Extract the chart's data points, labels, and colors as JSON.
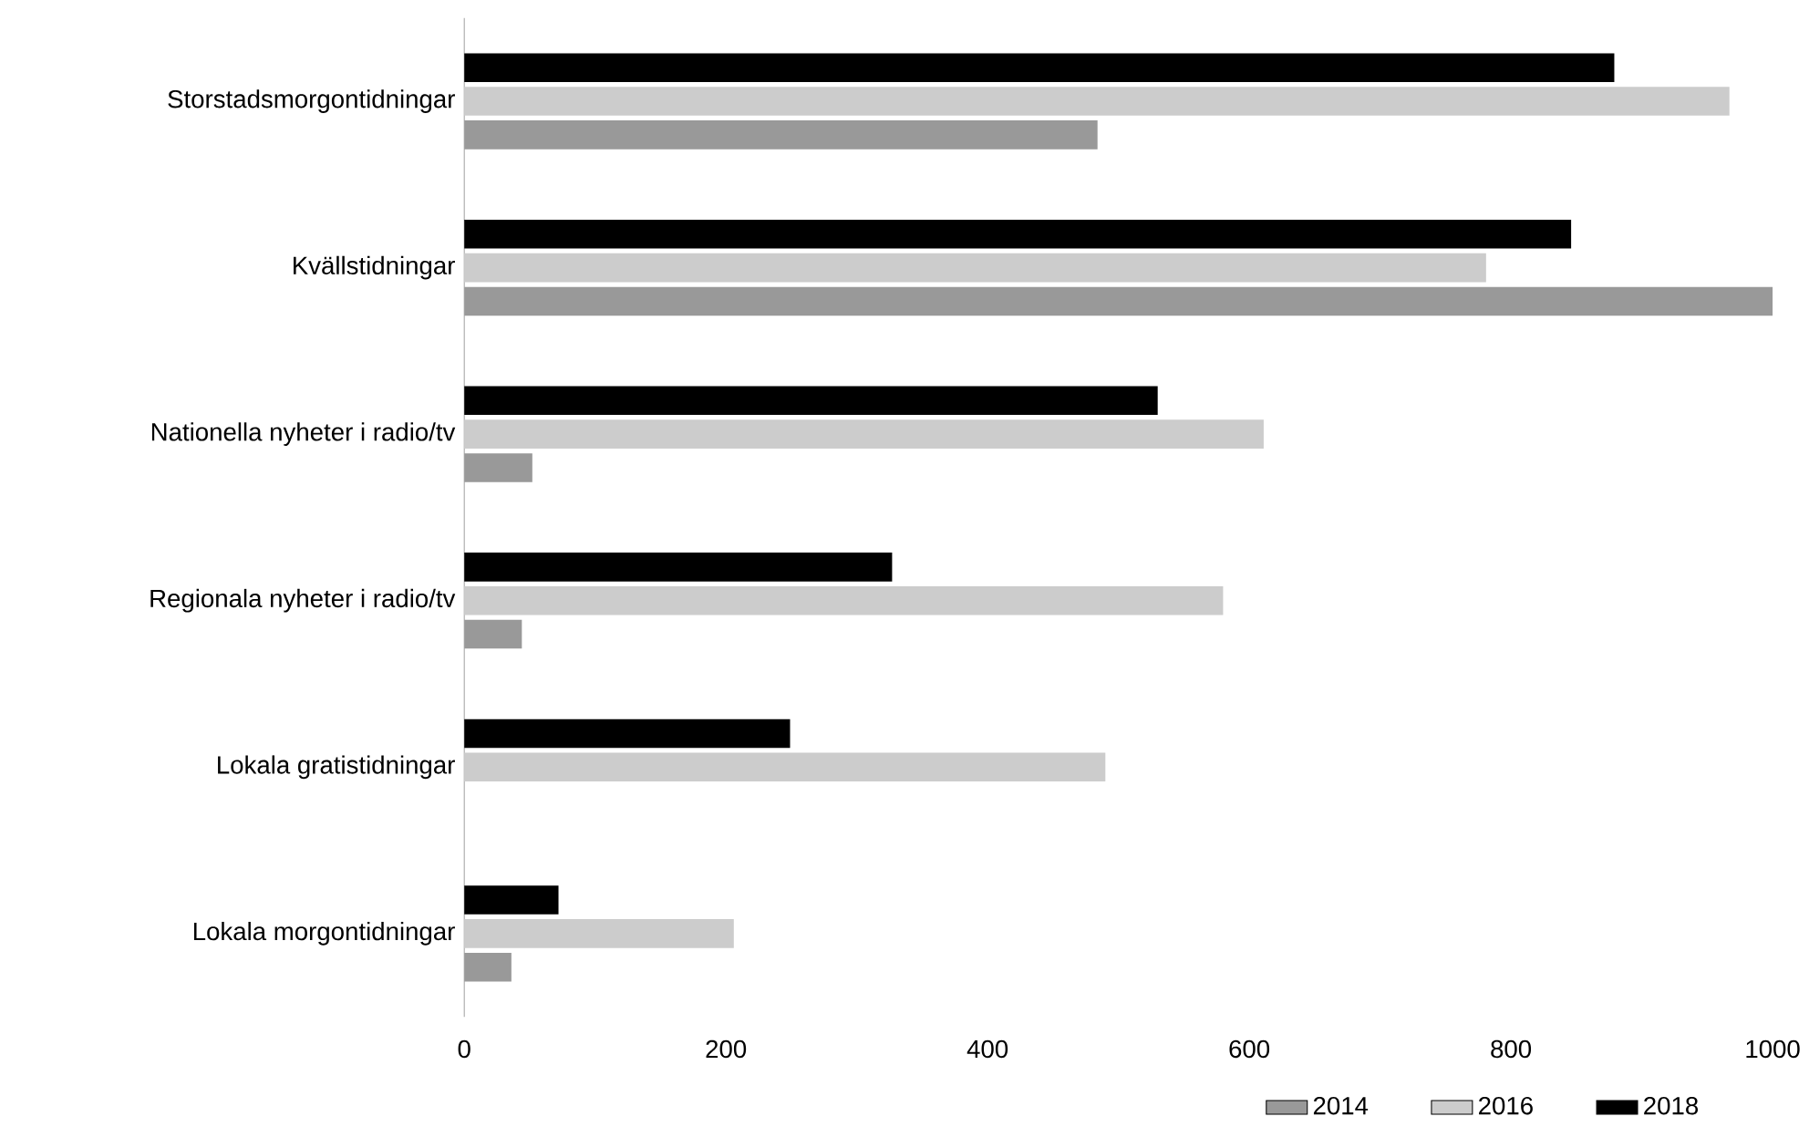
{
  "chart_data": {
    "type": "bar",
    "orientation": "horizontal",
    "categories": [
      "Storstadsmorgontidningar",
      "Kvällstidningar",
      "Nationella nyheter i radio/tv",
      "Regionala nyheter i radio/tv",
      "Lokala gratistidningar",
      "Lokala morgontidningar"
    ],
    "series": [
      {
        "name": "2014",
        "color": "#999999",
        "values": [
          484,
          1000,
          52,
          44,
          null,
          36
        ]
      },
      {
        "name": "2016",
        "color": "#cccccc",
        "values": [
          967,
          781,
          611,
          580,
          490,
          206
        ]
      },
      {
        "name": "2018",
        "color": "#000000",
        "values": [
          879,
          846,
          530,
          327,
          249,
          72
        ]
      }
    ],
    "xlim": [
      0,
      1000
    ],
    "xticks": [
      0,
      200,
      400,
      600,
      800,
      1000
    ],
    "legend": "bottom"
  }
}
